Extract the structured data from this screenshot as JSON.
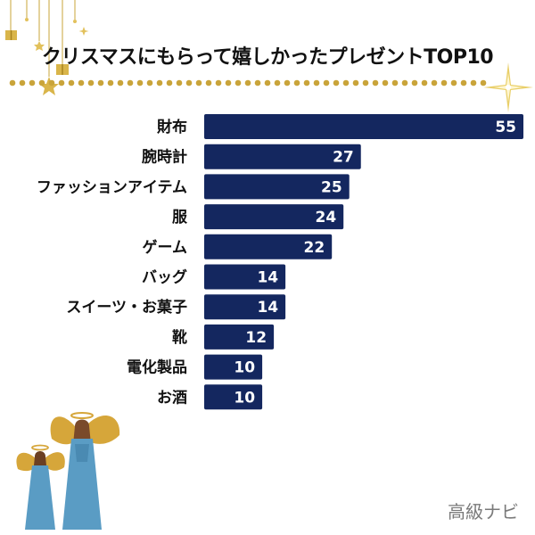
{
  "header": {
    "title": "クリスマスにもらって嬉しかったプレゼントTOP10"
  },
  "brand": {
    "text": "高級ナビ"
  },
  "colors": {
    "bar": "#14275f",
    "gold": "#c9a43a",
    "value_text": "#ffffff"
  },
  "chart_data": {
    "type": "bar",
    "orientation": "horizontal",
    "title": "クリスマスにもらって嬉しかったプレゼントTOP10",
    "categories": [
      "財布",
      "腕時計",
      "ファッションアイテム",
      "服",
      "ゲーム",
      "バッグ",
      "スイーツ・お菓子",
      "靴",
      "電化製品",
      "お酒"
    ],
    "values": [
      55,
      27,
      25,
      24,
      22,
      14,
      14,
      12,
      10,
      10
    ],
    "xlim": [
      0,
      55
    ],
    "grid": false,
    "data_labels": true
  }
}
